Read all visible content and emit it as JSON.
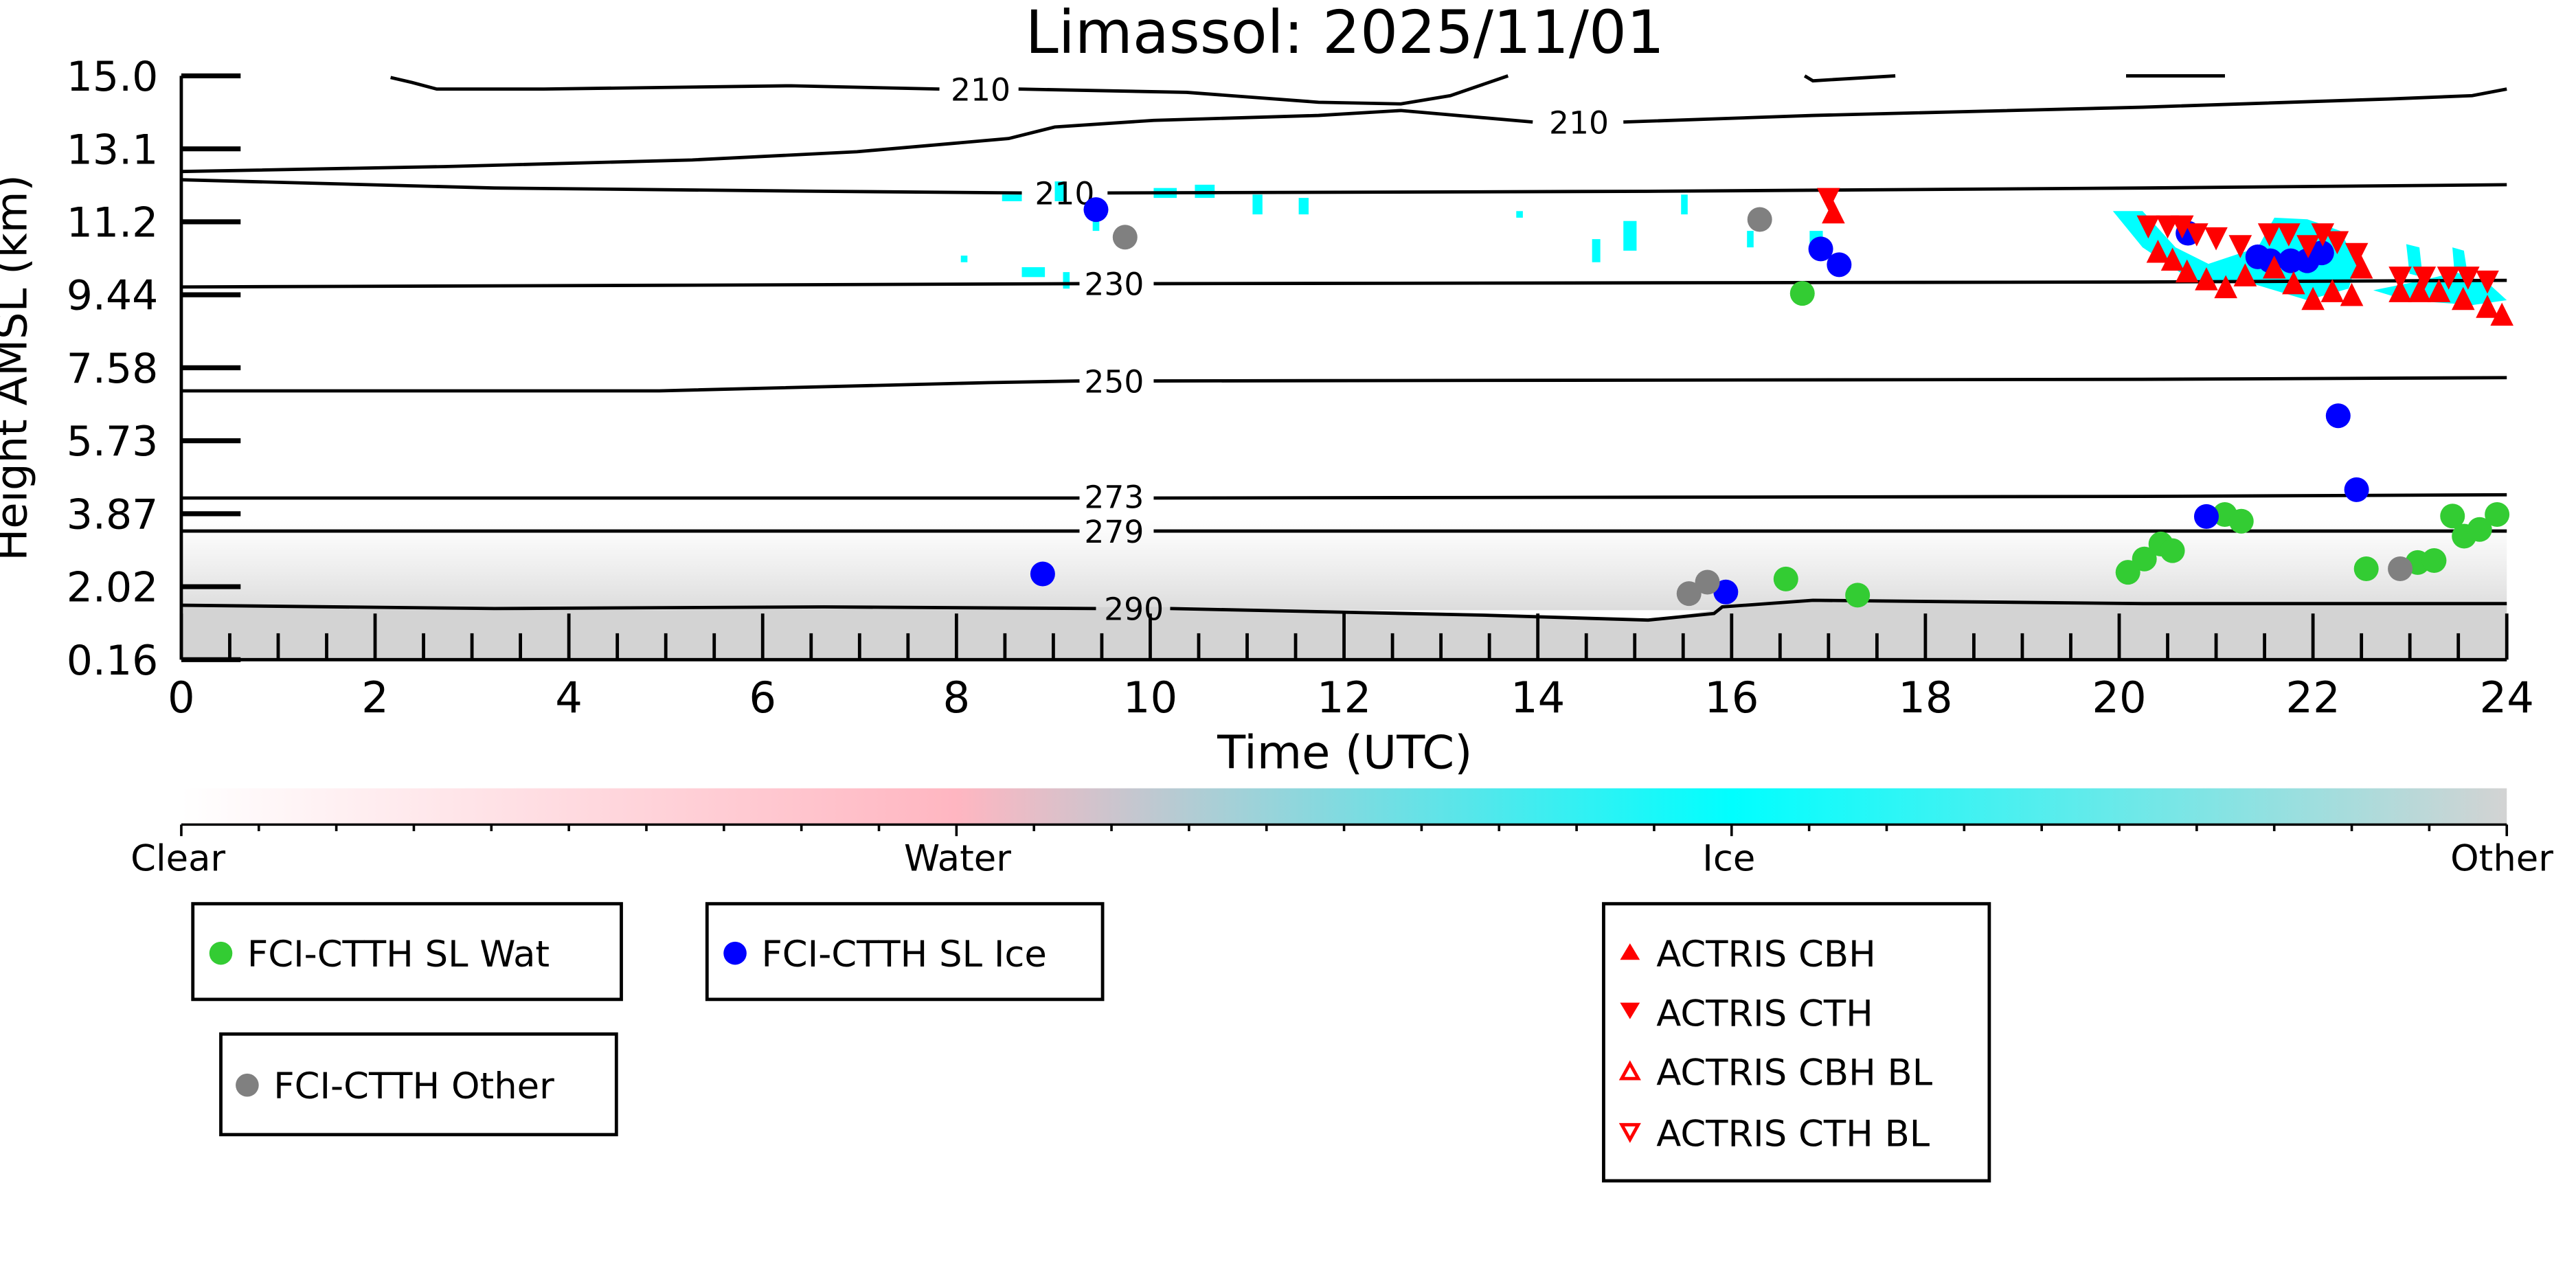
{
  "chart_data": {
    "type": "scatter",
    "title": "Limassol: 2025/11/01",
    "xlabel": "Time (UTC)",
    "ylabel": "Height AMSL (km)",
    "xlim": [
      0,
      24
    ],
    "ylim": [
      0.16,
      15.0
    ],
    "xticks": [
      "0",
      "2",
      "4",
      "6",
      "8",
      "10",
      "12",
      "14",
      "16",
      "18",
      "20",
      "22",
      "24"
    ],
    "yticks": [
      "15.0",
      "13.1",
      "11.2",
      "9.44",
      "7.58",
      "5.73",
      "3.87",
      "2.02",
      "0.16"
    ],
    "contour_labels": [
      "210",
      "210",
      "210",
      "230",
      "250",
      "273",
      "279",
      "290"
    ],
    "colorbar": {
      "labels": [
        "Clear",
        "Water",
        "Ice",
        "Other"
      ],
      "colors": [
        "#ffffff",
        "#ffb6c1",
        "#00ffff",
        "#d3d3d3"
      ]
    },
    "series": [
      {
        "name": "FCI-CTTH SL Wat",
        "color": "#33cc33",
        "marker": "circle",
        "points": [
          [
            16.73,
            9.47
          ],
          [
            16.56,
            2.21
          ],
          [
            17.3,
            1.8
          ],
          [
            20.09,
            2.38
          ],
          [
            20.26,
            2.72
          ],
          [
            20.43,
            3.1
          ],
          [
            20.55,
            2.93
          ],
          [
            21.09,
            3.85
          ],
          [
            21.26,
            3.68
          ],
          [
            22.55,
            2.47
          ],
          [
            23.08,
            2.63
          ],
          [
            23.25,
            2.68
          ],
          [
            23.44,
            3.81
          ],
          [
            23.56,
            3.3
          ],
          [
            23.72,
            3.47
          ],
          [
            23.9,
            3.85
          ]
        ]
      },
      {
        "name": "FCI-CTTH SL Ice",
        "color": "#0000ff",
        "marker": "circle",
        "points": [
          [
            8.89,
            2.34
          ],
          [
            9.44,
            11.6
          ],
          [
            16.92,
            10.6
          ],
          [
            17.11,
            10.2
          ],
          [
            15.94,
            1.88
          ],
          [
            20.71,
            11.0
          ],
          [
            20.9,
            3.8
          ],
          [
            21.43,
            10.4
          ],
          [
            21.56,
            10.3
          ],
          [
            21.77,
            10.3
          ],
          [
            21.94,
            10.3
          ],
          [
            22.09,
            10.5
          ],
          [
            22.26,
            6.36
          ],
          [
            22.45,
            4.48
          ]
        ]
      },
      {
        "name": "FCI-CTTH Other",
        "color": "#808080",
        "marker": "circle",
        "points": [
          [
            9.74,
            10.9
          ],
          [
            16.29,
            11.35
          ],
          [
            15.56,
            1.84
          ],
          [
            15.75,
            2.13
          ],
          [
            22.9,
            2.47
          ]
        ]
      },
      {
        "name": "ACTRIS CBH",
        "color": "#ff0000",
        "marker": "triangle-up",
        "points": [
          [
            17.05,
            11.5
          ],
          [
            20.4,
            10.5
          ],
          [
            20.55,
            10.3
          ],
          [
            20.7,
            10.0
          ],
          [
            20.9,
            9.8
          ],
          [
            21.1,
            9.6
          ],
          [
            21.3,
            9.9
          ],
          [
            21.6,
            10.1
          ],
          [
            21.8,
            9.7
          ],
          [
            22.0,
            9.3
          ],
          [
            22.2,
            9.5
          ],
          [
            22.4,
            9.4
          ],
          [
            22.5,
            10.1
          ],
          [
            22.9,
            9.5
          ],
          [
            23.1,
            9.5
          ],
          [
            23.3,
            9.5
          ],
          [
            23.55,
            9.3
          ],
          [
            23.8,
            9.1
          ],
          [
            23.95,
            8.9
          ]
        ]
      },
      {
        "name": "ACTRIS CTH",
        "color": "#ff0000",
        "marker": "triangle-down",
        "points": [
          [
            17.0,
            11.9
          ],
          [
            20.3,
            11.2
          ],
          [
            20.5,
            11.2
          ],
          [
            20.65,
            11.2
          ],
          [
            20.8,
            11.0
          ],
          [
            21.0,
            10.9
          ],
          [
            21.25,
            10.7
          ],
          [
            21.55,
            11.0
          ],
          [
            21.75,
            11.0
          ],
          [
            21.95,
            10.7
          ],
          [
            22.1,
            11.0
          ],
          [
            22.25,
            10.8
          ],
          [
            22.45,
            10.5
          ],
          [
            22.9,
            9.9
          ],
          [
            23.15,
            9.9
          ],
          [
            23.4,
            9.9
          ],
          [
            23.6,
            9.9
          ],
          [
            23.8,
            9.8
          ]
        ]
      },
      {
        "name": "ACTRIS CBH BL",
        "color": "#ff0000",
        "marker": "triangle-up-open",
        "points": []
      },
      {
        "name": "ACTRIS CTH BL",
        "color": "#ff0000",
        "marker": "triangle-down-open",
        "points": []
      }
    ]
  }
}
